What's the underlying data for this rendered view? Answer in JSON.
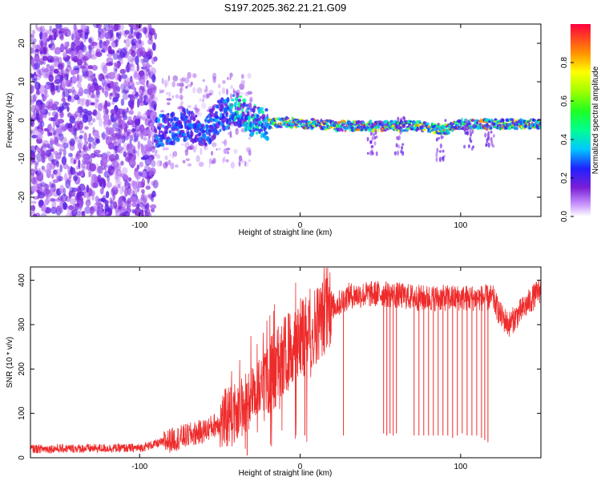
{
  "title": "S197.2025.362.21.21.G09",
  "chart_data": [
    {
      "type": "heatmap",
      "xlabel": "Height of straight line (km)",
      "ylabel": "Frequency (Hz)",
      "xlim": [
        -168,
        150
      ],
      "ylim": [
        -25,
        25
      ],
      "xticks": [
        -100,
        0,
        100
      ],
      "yticks": [
        -20,
        -10,
        0,
        10,
        20
      ],
      "colorbar": {
        "label": "Normalized spectral amplitude",
        "range": [
          0,
          1
        ],
        "ticks": [
          "0.0",
          "0.2",
          "0.4",
          "0.6",
          "0.8"
        ],
        "colormap": "hsv-rainbow"
      },
      "ridge": [
        {
          "x": -85,
          "f": -2.5
        },
        {
          "x": -70,
          "f": -1
        },
        {
          "x": -60,
          "f": -3
        },
        {
          "x": -50,
          "f": 1
        },
        {
          "x": -40,
          "f": 3
        },
        {
          "x": -30,
          "f": 0
        },
        {
          "x": -20,
          "f": -1
        },
        {
          "x": -10,
          "f": -0.5
        },
        {
          "x": 0,
          "f": -0.8
        },
        {
          "x": 10,
          "f": -1
        },
        {
          "x": 25,
          "f": -1.5
        },
        {
          "x": 50,
          "f": -1.5
        },
        {
          "x": 75,
          "f": -1.5
        },
        {
          "x": 90,
          "f": -2.5
        },
        {
          "x": 100,
          "f": -1
        },
        {
          "x": 125,
          "f": -1
        },
        {
          "x": 150,
          "f": -1
        }
      ]
    },
    {
      "type": "line",
      "xlabel": "Height of straight line (km)",
      "ylabel": "SNR (10 * v/v)",
      "xlim": [
        -168,
        150
      ],
      "ylim": [
        0,
        430
      ],
      "xticks": [
        -100,
        0,
        100
      ],
      "yticks": [
        0,
        100,
        200,
        300,
        400
      ],
      "color": "#ee2b2b",
      "series": [
        {
          "name": "SNR",
          "x": [
            -168,
            -100,
            -80,
            -60,
            -40,
            -20,
            -10,
            0,
            10,
            20,
            25,
            30,
            50,
            75,
            100,
            120,
            125,
            130,
            140,
            150
          ],
          "values": [
            20,
            22,
            40,
            60,
            100,
            180,
            230,
            260,
            300,
            340,
            350,
            365,
            370,
            360,
            360,
            360,
            320,
            300,
            340,
            380
          ]
        }
      ],
      "dropouts": [
        {
          "x": -33,
          "to": 5
        },
        {
          "x": 3,
          "to": 50
        },
        {
          "x": 27,
          "to": 50
        },
        {
          "x": 52,
          "to": 55
        },
        {
          "x": 54,
          "to": 50
        },
        {
          "x": 56,
          "to": 55
        },
        {
          "x": 58,
          "to": 50
        },
        {
          "x": 60,
          "to": 55
        },
        {
          "x": 71,
          "to": 50
        },
        {
          "x": 74,
          "to": 50
        },
        {
          "x": 77,
          "to": 50
        },
        {
          "x": 80,
          "to": 50
        },
        {
          "x": 83,
          "to": 50
        },
        {
          "x": 86,
          "to": 50
        },
        {
          "x": 89,
          "to": 50
        },
        {
          "x": 92,
          "to": 50
        },
        {
          "x": 95,
          "to": 45
        },
        {
          "x": 98,
          "to": 50
        },
        {
          "x": 101,
          "to": 55
        },
        {
          "x": 104,
          "to": 50
        },
        {
          "x": 107,
          "to": 50
        },
        {
          "x": 110,
          "to": 50
        },
        {
          "x": 113,
          "to": 45
        },
        {
          "x": 115,
          "to": 40
        },
        {
          "x": 117,
          "to": 35
        }
      ]
    }
  ]
}
